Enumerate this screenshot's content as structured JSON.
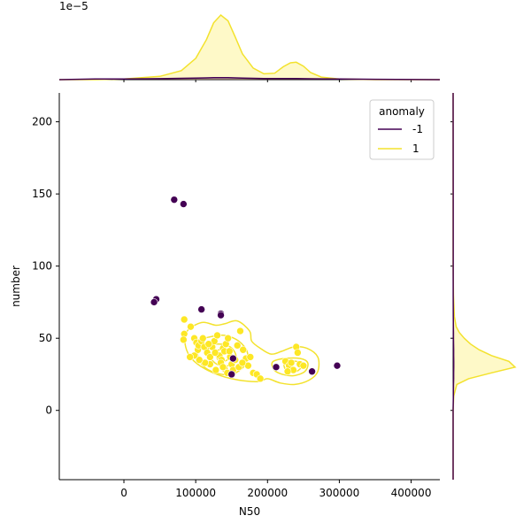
{
  "chart_data": {
    "type": "scatter",
    "title": "",
    "xlabel": "N50",
    "ylabel": "number",
    "xlim": [
      -90000,
      440000
    ],
    "ylim": [
      -48,
      220
    ],
    "xticks": [
      0,
      100000,
      200000,
      300000,
      400000
    ],
    "yticks": [
      0,
      50,
      100,
      150,
      200
    ],
    "top_marginal_scale_label": "1e−5",
    "legend": {
      "title": "anomaly",
      "position": "top-right",
      "entries": [
        "-1",
        "1"
      ]
    },
    "colors": {
      "-1": "#440154",
      "1": "#fde725",
      "1_line": "#f3e22d",
      "axis": "#000000"
    },
    "series": [
      {
        "name": "1",
        "points": [
          [
            84000,
            63
          ],
          [
            84000,
            53
          ],
          [
            83000,
            49
          ],
          [
            93000,
            58
          ],
          [
            98000,
            50
          ],
          [
            101000,
            47
          ],
          [
            103000,
            42
          ],
          [
            104000,
            45
          ],
          [
            108000,
            48
          ],
          [
            112000,
            44
          ],
          [
            116000,
            40
          ],
          [
            120000,
            37
          ],
          [
            123000,
            44
          ],
          [
            126000,
            48
          ],
          [
            130000,
            52
          ],
          [
            133000,
            38
          ],
          [
            136000,
            35
          ],
          [
            138000,
            43
          ],
          [
            140000,
            41
          ],
          [
            142000,
            46
          ],
          [
            145000,
            50
          ],
          [
            148000,
            37
          ],
          [
            150000,
            32
          ],
          [
            152000,
            28
          ],
          [
            155000,
            35
          ],
          [
            158000,
            45
          ],
          [
            162000,
            55
          ],
          [
            166000,
            42
          ],
          [
            170000,
            36
          ],
          [
            173000,
            31
          ],
          [
            176000,
            37
          ],
          [
            180000,
            26
          ],
          [
            185000,
            25
          ],
          [
            190000,
            22
          ],
          [
            120000,
            32
          ],
          [
            113000,
            33
          ],
          [
            105000,
            35
          ],
          [
            98000,
            38
          ],
          [
            92000,
            37
          ],
          [
            110000,
            50
          ],
          [
            118000,
            46
          ],
          [
            127000,
            40
          ],
          [
            135000,
            33
          ],
          [
            140000,
            29
          ],
          [
            144000,
            26
          ],
          [
            150000,
            25
          ],
          [
            160000,
            30
          ],
          [
            165000,
            33
          ],
          [
            147000,
            41
          ],
          [
            138000,
            30
          ],
          [
            128000,
            28
          ],
          [
            225000,
            34
          ],
          [
            230000,
            31
          ],
          [
            233000,
            33
          ],
          [
            236000,
            28
          ],
          [
            240000,
            44
          ],
          [
            242000,
            40
          ],
          [
            245000,
            32
          ],
          [
            250000,
            31
          ],
          [
            228000,
            27
          ]
        ]
      },
      {
        "name": "-1",
        "points": [
          [
            70000,
            146
          ],
          [
            83000,
            143
          ],
          [
            45000,
            77
          ],
          [
            42000,
            75
          ],
          [
            108000,
            70
          ],
          [
            135000,
            67
          ],
          [
            135000,
            66
          ],
          [
            152000,
            36
          ],
          [
            150000,
            25
          ],
          [
            212000,
            30
          ],
          [
            262000,
            27
          ],
          [
            297000,
            31
          ]
        ]
      }
    ],
    "density_contours_1": [
      [
        [
          92000,
          57
        ],
        [
          110000,
          61
        ],
        [
          128000,
          59
        ],
        [
          140000,
          60
        ],
        [
          158000,
          62
        ],
        [
          175000,
          55
        ],
        [
          178000,
          48
        ],
        [
          190000,
          43
        ],
        [
          205000,
          39
        ],
        [
          220000,
          41
        ],
        [
          237000,
          44
        ],
        [
          255000,
          43
        ],
        [
          270000,
          37
        ],
        [
          270000,
          27
        ],
        [
          258000,
          21
        ],
        [
          238000,
          18
        ],
        [
          218000,
          19
        ],
        [
          200000,
          22
        ],
        [
          188000,
          20
        ],
        [
          160000,
          21
        ],
        [
          135000,
          24
        ],
        [
          112000,
          29
        ],
        [
          94000,
          36
        ],
        [
          86000,
          44
        ],
        [
          86000,
          52
        ]
      ],
      [
        [
          104000,
          48
        ],
        [
          120000,
          51
        ],
        [
          140000,
          52
        ],
        [
          160000,
          48
        ],
        [
          172000,
          40
        ],
        [
          168000,
          31
        ],
        [
          150000,
          25
        ],
        [
          128000,
          26
        ],
        [
          110000,
          31
        ],
        [
          102000,
          40
        ]
      ],
      [
        [
          118000,
          44
        ],
        [
          132000,
          46
        ],
        [
          148000,
          44
        ],
        [
          156000,
          38
        ],
        [
          150000,
          32
        ],
        [
          134000,
          31
        ],
        [
          121000,
          36
        ]
      ],
      [
        [
          128000,
          41
        ],
        [
          138000,
          42
        ],
        [
          146000,
          39
        ],
        [
          144000,
          35
        ],
        [
          134000,
          34
        ],
        [
          129000,
          37
        ]
      ],
      [
        [
          208000,
          34
        ],
        [
          224000,
          36
        ],
        [
          245000,
          36
        ],
        [
          256000,
          33
        ],
        [
          252000,
          27
        ],
        [
          235000,
          24
        ],
        [
          215000,
          26
        ],
        [
          207000,
          30
        ]
      ],
      [
        [
          224000,
          33
        ],
        [
          240000,
          34
        ],
        [
          248000,
          31
        ],
        [
          240000,
          27
        ],
        [
          226000,
          28
        ]
      ]
    ],
    "marginal_x": {
      "grid_x": [
        -90000,
        -40000,
        0,
        50000,
        80000,
        100000,
        115000,
        125000,
        135000,
        145000,
        155000,
        165000,
        180000,
        195000,
        210000,
        222000,
        232000,
        240000,
        250000,
        260000,
        275000,
        300000,
        350000,
        440000
      ],
      "density_1": [
        0.0,
        0.0,
        0.01,
        0.05,
        0.14,
        0.33,
        0.62,
        0.88,
        1.0,
        0.91,
        0.66,
        0.4,
        0.18,
        0.09,
        0.1,
        0.2,
        0.26,
        0.27,
        0.21,
        0.11,
        0.04,
        0.01,
        0.0,
        0.0
      ],
      "density_-1": [
        0.0,
        0.01,
        0.01,
        0.015,
        0.02,
        0.025,
        0.028,
        0.03,
        0.03,
        0.03,
        0.028,
        0.025,
        0.02,
        0.018,
        0.018,
        0.018,
        0.017,
        0.016,
        0.015,
        0.014,
        0.012,
        0.01,
        0.005,
        0.0
      ]
    },
    "marginal_y": {
      "grid_y": [
        -48,
        0,
        10,
        18,
        22,
        26,
        30,
        34,
        38,
        42,
        46,
        50,
        54,
        58,
        65,
        80,
        100,
        150,
        220
      ],
      "density_1": [
        0.0,
        0.0,
        0.01,
        0.06,
        0.25,
        0.62,
        1.0,
        0.9,
        0.62,
        0.42,
        0.28,
        0.18,
        0.1,
        0.05,
        0.02,
        0.005,
        0.0,
        0.0,
        0.0
      ],
      "density_-1": [
        0.0,
        0.0,
        0.004,
        0.006,
        0.008,
        0.009,
        0.01,
        0.01,
        0.009,
        0.008,
        0.007,
        0.006,
        0.005,
        0.004,
        0.003,
        0.002,
        0.002,
        0.001,
        0.0
      ]
    }
  }
}
